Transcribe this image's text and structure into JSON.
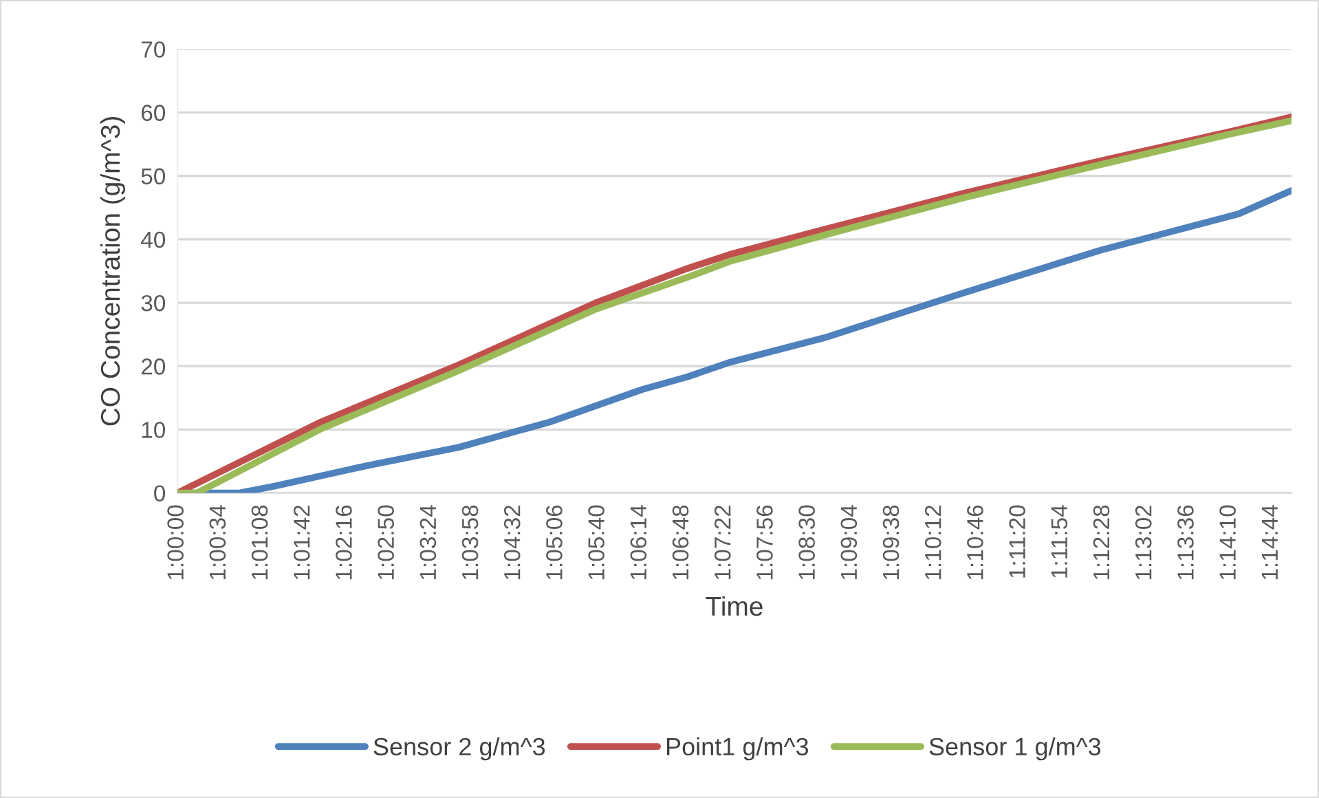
{
  "chart_data": {
    "type": "line",
    "xlabel": "Time",
    "ylabel": "CO Concentration (g/m^3)",
    "series": [
      {
        "name": "Sensor 2 g/m^3",
        "color": "#4f81bd",
        "x": [
          1.0,
          1.0139,
          1.0219,
          1.0425,
          1.0631,
          1.0836,
          1.1042,
          1.1144,
          1.1239,
          1.1453,
          1.1761,
          1.2072,
          1.2381,
          1.25
        ],
        "values": [
          0,
          0,
          1.1,
          4.3,
          7.2,
          11.2,
          16.3,
          18.3,
          20.6,
          24.5,
          31.5,
          38.3,
          44.0,
          47.7
        ]
      },
      {
        "name": "Point1 g/m^3",
        "color": "#c0504d",
        "x": [
          1.0,
          1.0322,
          1.0631,
          1.0939,
          1.1144,
          1.1239,
          1.1453,
          1.1761,
          1.2072,
          1.2381,
          1.25
        ],
        "values": [
          0,
          11.2,
          20.2,
          30.0,
          35.4,
          37.6,
          41.6,
          47.2,
          52.4,
          57.3,
          59.3
        ]
      },
      {
        "name": "Sensor 1 g/m^3",
        "color": "#9bbb59",
        "x": [
          1.0,
          1.0044,
          1.0322,
          1.0631,
          1.0939,
          1.1144,
          1.1239,
          1.1453,
          1.1761,
          1.2072,
          1.2381,
          1.25
        ],
        "values": [
          0,
          0,
          10.1,
          19.3,
          29.0,
          34.0,
          36.5,
          40.7,
          46.5,
          51.8,
          56.9,
          58.7
        ]
      }
    ],
    "xlim": [
      1.0,
      1.25
    ],
    "xticks": [
      {
        "value": 1.0,
        "label": "1:00:00"
      },
      {
        "value": 1.009444,
        "label": "1:00:34"
      },
      {
        "value": 1.018889,
        "label": "1:01:08"
      },
      {
        "value": 1.028333,
        "label": "1:01:42"
      },
      {
        "value": 1.037778,
        "label": "1:02:16"
      },
      {
        "value": 1.047222,
        "label": "1:02:50"
      },
      {
        "value": 1.056667,
        "label": "1:03:24"
      },
      {
        "value": 1.066111,
        "label": "1:03:58"
      },
      {
        "value": 1.075556,
        "label": "1:04:32"
      },
      {
        "value": 1.085,
        "label": "1:05:06"
      },
      {
        "value": 1.094444,
        "label": "1:05:40"
      },
      {
        "value": 1.103889,
        "label": "1:06:14"
      },
      {
        "value": 1.113333,
        "label": "1:06:48"
      },
      {
        "value": 1.122778,
        "label": "1:07:22"
      },
      {
        "value": 1.132222,
        "label": "1:07:56"
      },
      {
        "value": 1.141667,
        "label": "1:08:30"
      },
      {
        "value": 1.151111,
        "label": "1:09:04"
      },
      {
        "value": 1.160556,
        "label": "1:09:38"
      },
      {
        "value": 1.17,
        "label": "1:10:12"
      },
      {
        "value": 1.179444,
        "label": "1:10:46"
      },
      {
        "value": 1.188889,
        "label": "1:11:20"
      },
      {
        "value": 1.198333,
        "label": "1:11:54"
      },
      {
        "value": 1.207778,
        "label": "1:12:28"
      },
      {
        "value": 1.217222,
        "label": "1:13:02"
      },
      {
        "value": 1.226667,
        "label": "1:13:36"
      },
      {
        "value": 1.236111,
        "label": "1:14:10"
      },
      {
        "value": 1.245556,
        "label": "1:14:44"
      }
    ],
    "ylim": [
      0,
      70
    ],
    "yticks": [
      0,
      10,
      20,
      30,
      40,
      50,
      60,
      70
    ],
    "grid": "y",
    "legend": "bottom",
    "marker": "none",
    "line_style": "solid"
  }
}
